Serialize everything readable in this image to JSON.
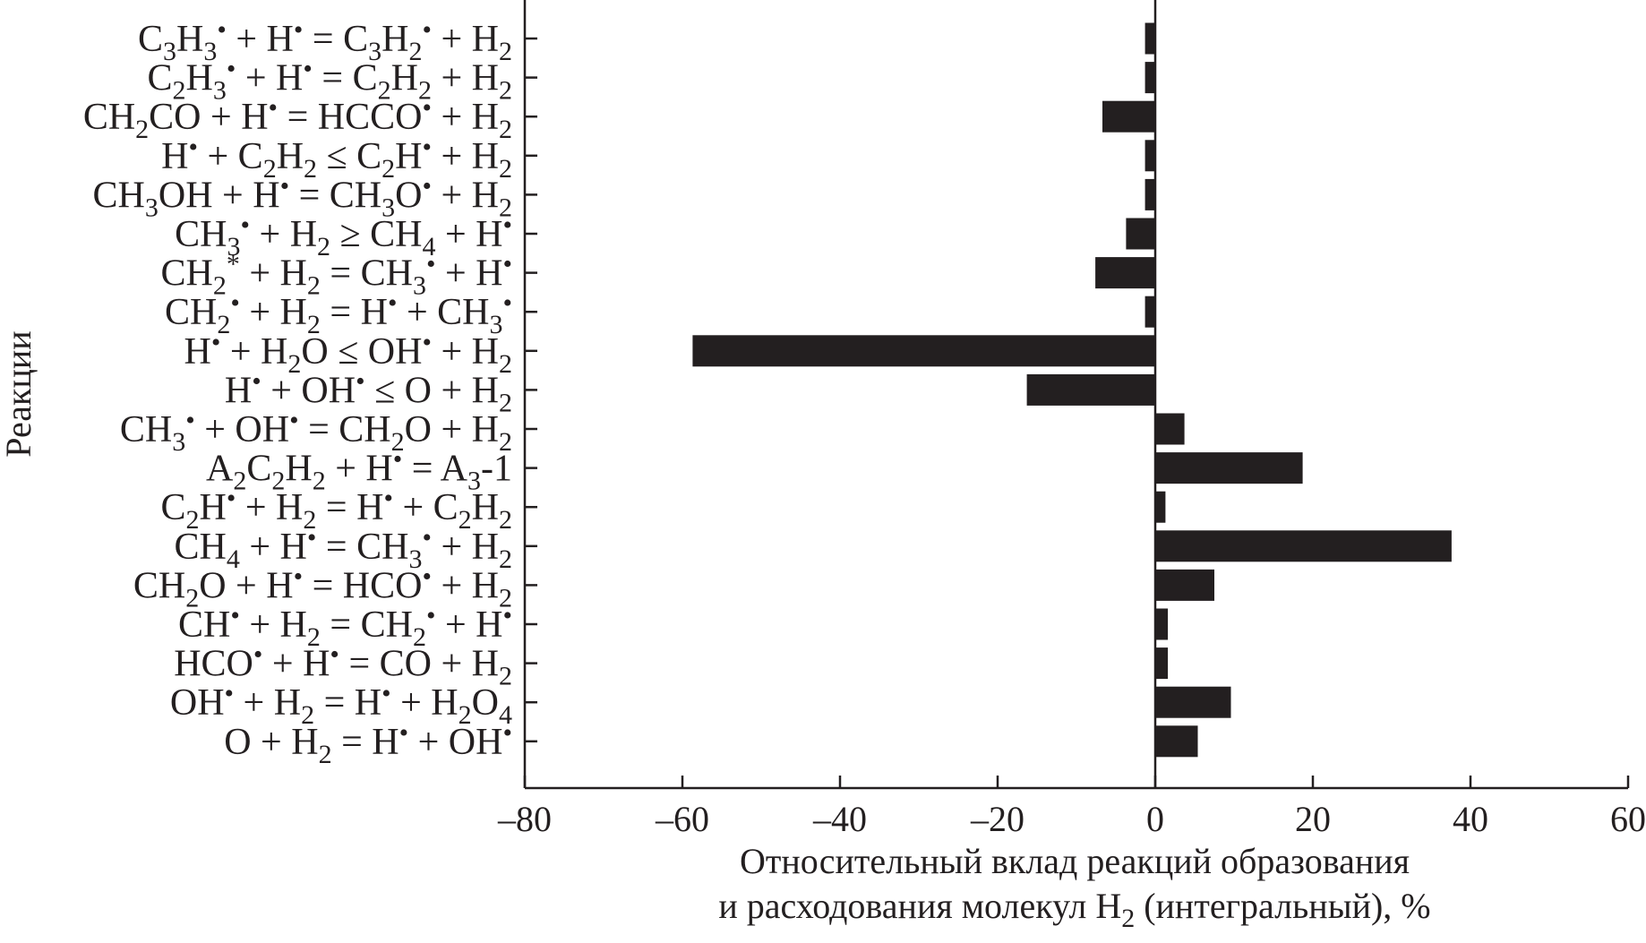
{
  "chart_data": {
    "type": "bar",
    "orientation": "horizontal",
    "categories": [
      "C3H3• + H• = C3H2• + H2",
      "C2H3• + H• = C2H2 + H2",
      "CH2CO + H• = HCCO• + H2",
      "H• + C2H2 ≤ C2H• + H2",
      "CH3OH + H• = CH3O• + H2",
      "CH3• + H2 ≥ CH4 + H•",
      "CH2* + H2 = CH3• + H•",
      "CH2• + H2 = H• + CH3•",
      "H• + H2O ≤ OH• + H2",
      "H• + OH• ≤ O + H2",
      "CH3• + OH• = CH2O + H2",
      "A2C2H2 + H• = A3-1",
      "C2H• + H2 = H• + C2H2",
      "CH4 + H• = CH3• + H2",
      "CH2O + H• = HCO• + H2",
      "CH• + H2 = CH2• + H•",
      "HCO• + H• = CO + H2",
      "OH• + H2 = H• + H2O4",
      "O + H2 = H• + OH•"
    ],
    "values": [
      -1.3,
      -1.3,
      -6.7,
      -1.3,
      -1.3,
      -3.7,
      -7.6,
      -1.3,
      -58.7,
      -16.3,
      3.7,
      18.7,
      1.3,
      37.6,
      7.5,
      1.6,
      1.6,
      9.6,
      5.4
    ],
    "xlabel_line1": "Относительный вклад реакций образования",
    "xlabel_line2": "и расходования молекул H2 (интегральный), %",
    "ylabel": "Реакции",
    "xlim": [
      -80,
      60
    ],
    "xticks": [
      -80,
      -60,
      -40,
      -20,
      0,
      20,
      40,
      60
    ],
    "xtick_labels": [
      "–80",
      "–60",
      "–40",
      "–20",
      "0",
      "20",
      "40",
      "60"
    ],
    "grid": false,
    "bar_color": "#231f20"
  }
}
